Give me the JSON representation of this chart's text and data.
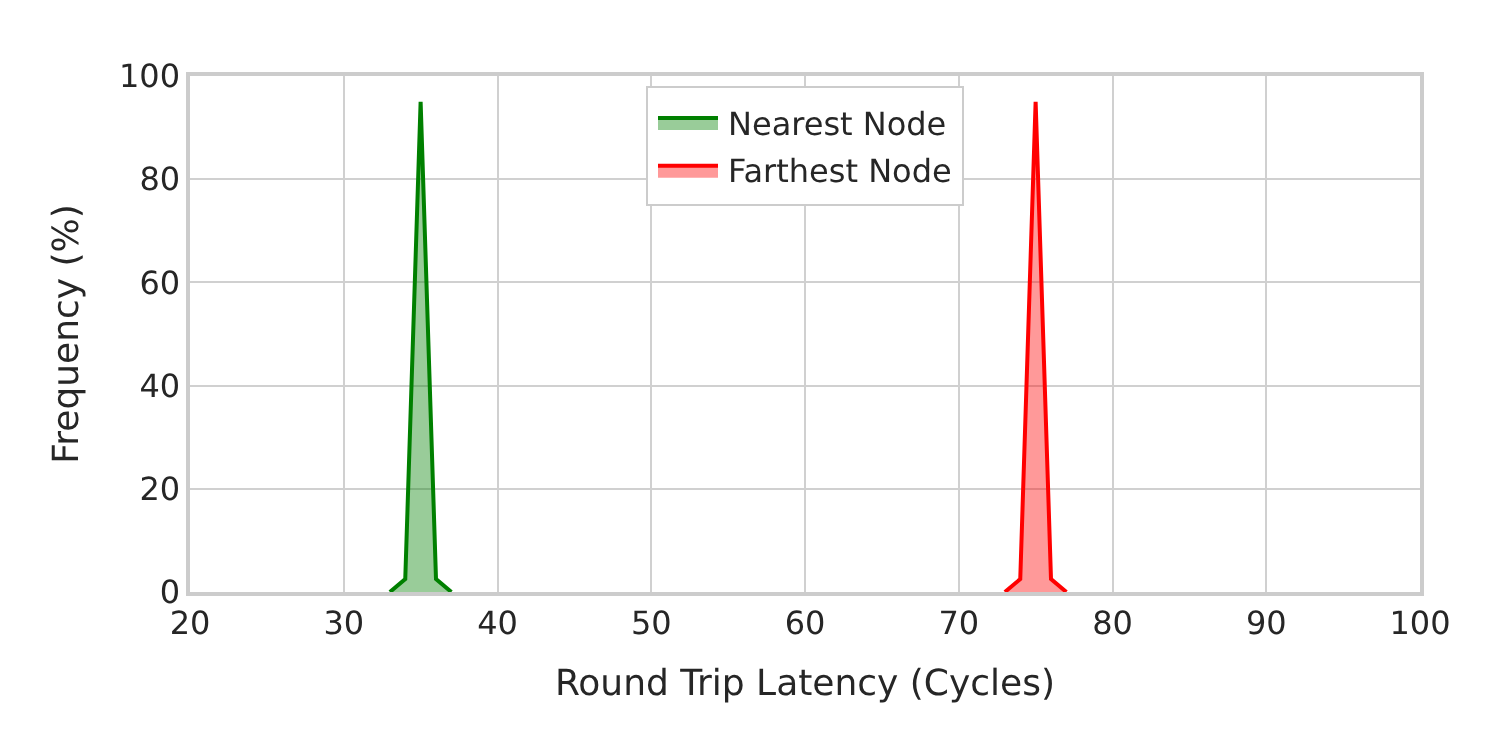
{
  "chart_data": {
    "type": "area",
    "xlabel": "Round Trip Latency (Cycles)",
    "ylabel": "Frequency (%)",
    "series": [
      {
        "name": "Nearest Node",
        "color": "#008000",
        "x": [
          33,
          34,
          35,
          36,
          37
        ],
        "values": [
          0,
          2.5,
          95,
          2.5,
          0
        ]
      },
      {
        "name": "Farthest Node",
        "color": "#ff0000",
        "x": [
          73,
          74,
          75,
          76,
          77
        ],
        "values": [
          0,
          2.5,
          95,
          2.5,
          0
        ]
      }
    ],
    "xlim": [
      20,
      100
    ],
    "xticks": [
      20,
      30,
      40,
      50,
      60,
      70,
      80,
      90,
      100
    ],
    "ylim": [
      0,
      100
    ],
    "yticks": [
      0,
      20,
      40,
      60,
      80,
      100
    ],
    "grid": true,
    "legend": "top",
    "marker": "none",
    "line_style": "solid"
  }
}
